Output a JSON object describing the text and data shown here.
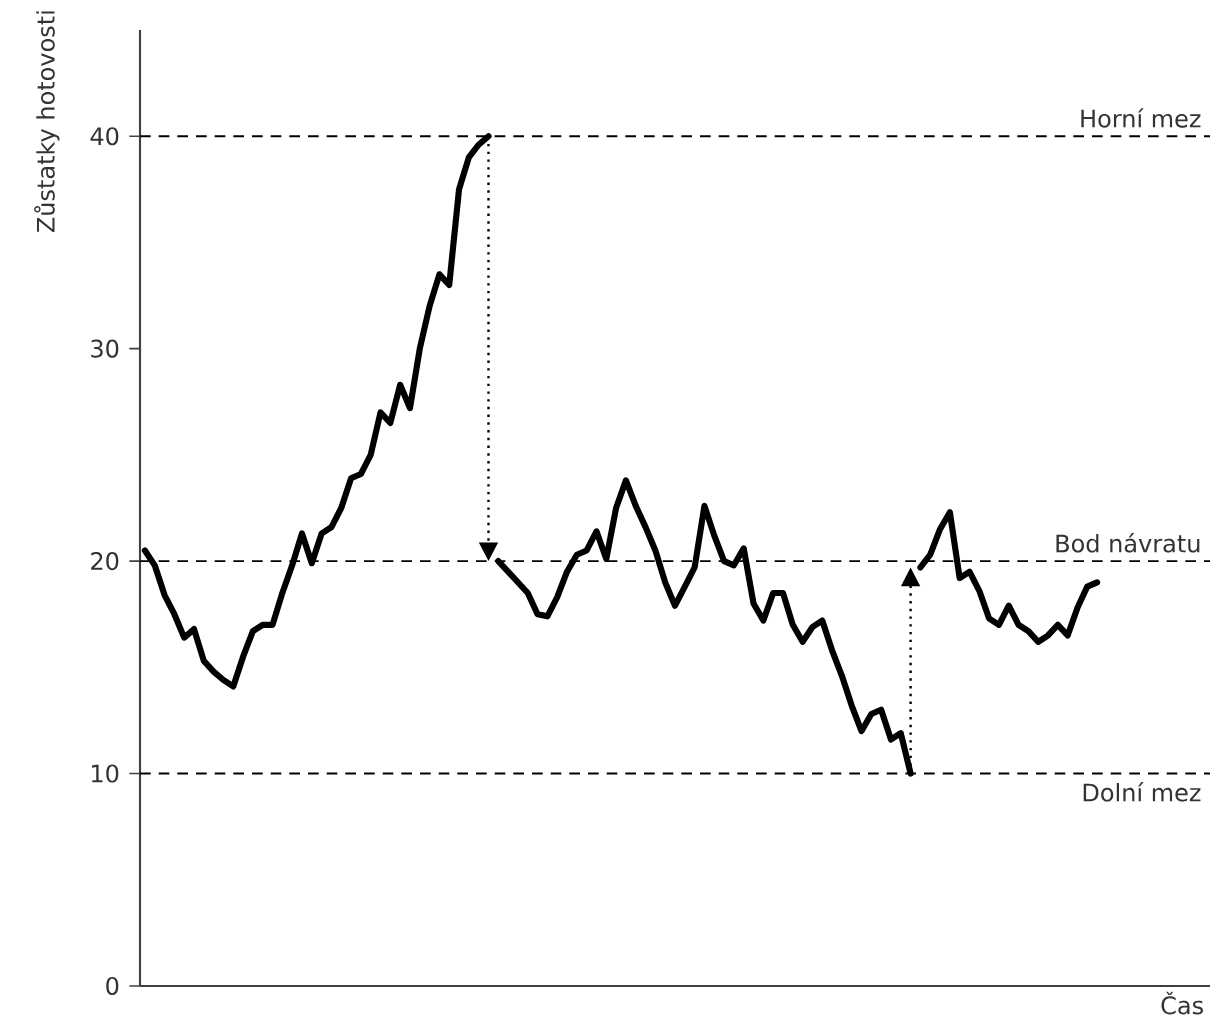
{
  "chart_data": {
    "type": "line",
    "ylabel": "Zůstatky hotovosti",
    "xlabel": "Čas",
    "categories": [
      null,
      null,
      null,
      null,
      null,
      null,
      null,
      null,
      null,
      null,
      null,
      null,
      null,
      null,
      null,
      null,
      null,
      null,
      null,
      null,
      null,
      null,
      null,
      null,
      null,
      null,
      null,
      null,
      null,
      null,
      null,
      null,
      null,
      null,
      null,
      null,
      null,
      null,
      null,
      null,
      null,
      null,
      null,
      null,
      null,
      null,
      null,
      null,
      null,
      null,
      null,
      null,
      null,
      null,
      null,
      null,
      null,
      null,
      null,
      null,
      null,
      null,
      null,
      null,
      null,
      null,
      null,
      null,
      null,
      null,
      null,
      null,
      null,
      null,
      null,
      null,
      null,
      null,
      null,
      null,
      null,
      null,
      null,
      null,
      null,
      null,
      null,
      null,
      null,
      null,
      null,
      null,
      null,
      null,
      null,
      null,
      null,
      null,
      null,
      null,
      null,
      null,
      null,
      null,
      null,
      null,
      null,
      null,
      null
    ],
    "series": [
      {
        "color": "#000000",
        "values": [
          20.5,
          19.8,
          18.4,
          17.5,
          16.4,
          16.8,
          15.3,
          14.8,
          14.4,
          14.1,
          15.5,
          16.7,
          17.0,
          17.0,
          18.5,
          19.8,
          21.3,
          19.9,
          21.3,
          21.6,
          22.5,
          23.9,
          24.1,
          25.0,
          27.0,
          26.5,
          28.3,
          27.2,
          30.0,
          32.0,
          33.5,
          33.0,
          37.5,
          39.0,
          39.6,
          40.0,
          null,
          null,
          null,
          null,
          null,
          null,
          null,
          null,
          null,
          null,
          null,
          null,
          null,
          null,
          null,
          null,
          null,
          null,
          null,
          null,
          null,
          null,
          null,
          null,
          null,
          null,
          null,
          null,
          null,
          null,
          null,
          null,
          null,
          null,
          null,
          null,
          null,
          null,
          null,
          null,
          null,
          null,
          null,
          null,
          null,
          null,
          null,
          null,
          null,
          null,
          null,
          null,
          null,
          null,
          null,
          null,
          null,
          null,
          null,
          null,
          null,
          null,
          null,
          null,
          null,
          null,
          null,
          null,
          null,
          null,
          null,
          null,
          null
        ]
      },
      {
        "color": "#000000",
        "values": [
          null,
          null,
          null,
          null,
          null,
          null,
          null,
          null,
          null,
          null,
          null,
          null,
          null,
          null,
          null,
          null,
          null,
          null,
          null,
          null,
          null,
          null,
          null,
          null,
          null,
          null,
          null,
          null,
          null,
          null,
          null,
          null,
          null,
          null,
          null,
          null,
          20.0,
          19.5,
          19.0,
          18.5,
          17.5,
          17.4,
          18.3,
          19.5,
          20.3,
          20.5,
          21.4,
          20.1,
          22.5,
          23.8,
          22.6,
          21.6,
          20.5,
          19.0,
          17.9,
          18.8,
          19.7,
          22.6,
          21.2,
          20.0,
          19.8,
          20.6,
          18.0,
          17.2,
          18.5,
          18.5,
          17.0,
          16.2,
          16.9,
          17.2,
          15.8,
          14.6,
          13.2,
          12.0,
          12.8,
          13.0,
          11.6,
          11.9,
          10.0,
          null,
          null,
          null,
          null,
          null,
          null,
          null,
          null,
          null,
          null,
          null,
          null,
          null,
          null,
          null,
          null,
          null,
          null,
          null,
          null,
          null,
          null,
          null,
          null,
          null,
          null,
          null,
          null,
          null,
          null
        ]
      },
      {
        "color": "#000000",
        "values": [
          null,
          null,
          null,
          null,
          null,
          null,
          null,
          null,
          null,
          null,
          null,
          null,
          null,
          null,
          null,
          null,
          null,
          null,
          null,
          null,
          null,
          null,
          null,
          null,
          null,
          null,
          null,
          null,
          null,
          null,
          null,
          null,
          null,
          null,
          null,
          null,
          null,
          null,
          null,
          null,
          null,
          null,
          null,
          null,
          null,
          null,
          null,
          null,
          null,
          null,
          null,
          null,
          null,
          null,
          null,
          null,
          null,
          null,
          null,
          null,
          null,
          null,
          null,
          null,
          null,
          null,
          null,
          null,
          null,
          null,
          null,
          null,
          null,
          null,
          null,
          null,
          null,
          null,
          null,
          19.7,
          20.3,
          21.5,
          22.3,
          19.2,
          19.5,
          18.6,
          17.3,
          17.0,
          17.9,
          17.0,
          16.7,
          16.2,
          16.5,
          17.0,
          16.5,
          17.8,
          18.8,
          19.0,
          null,
          null,
          null,
          null,
          null,
          null,
          null,
          null,
          null,
          null,
          null
        ]
      }
    ],
    "ylim": [
      0,
      45
    ],
    "yticks": [
      0,
      10,
      20,
      30,
      40
    ],
    "tick_labels": "y",
    "line_style": "solid",
    "ref_lines": [
      {
        "axis": "y",
        "value": 40,
        "label": "Horní mez",
        "color": "#000000",
        "line_style": "dashed"
      },
      {
        "axis": "y",
        "value": 20,
        "label": "Bod návratu",
        "color": "#000000",
        "line_style": "dashed"
      },
      {
        "axis": "y",
        "value": 10,
        "label": "Dolní mez",
        "color": "#000000",
        "line_style": "dashed"
      }
    ]
  }
}
